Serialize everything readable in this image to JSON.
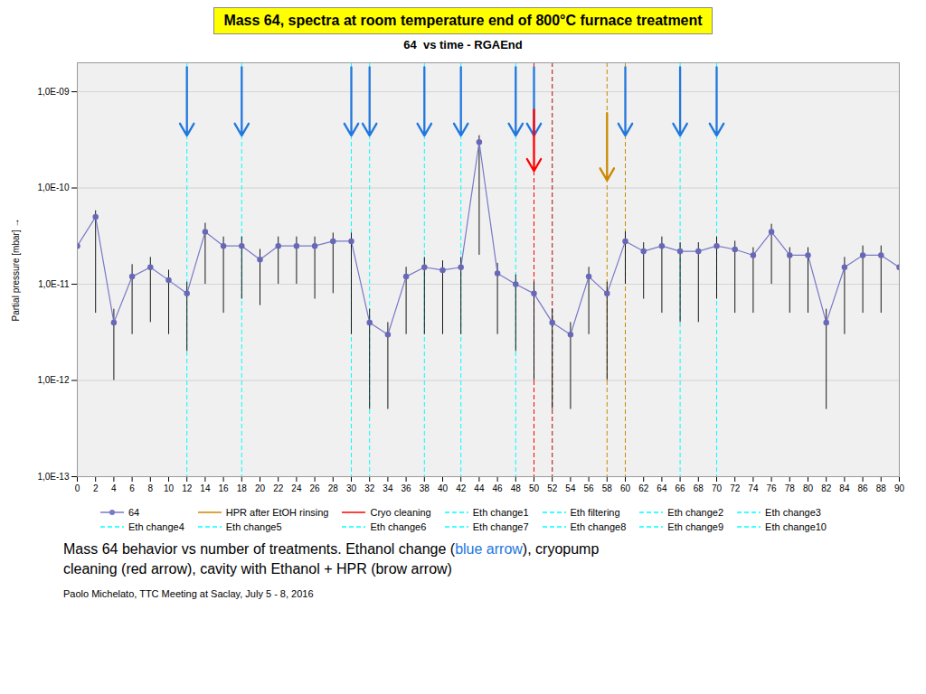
{
  "chart_data": {
    "type": "line",
    "title": "Mass 64, spectra at room temperature end of 800°C furnace treatment",
    "subtitle": "64  vs time - RGAEnd",
    "y_label": "Partial pressure [mbar]",
    "log": "y",
    "grid": "y",
    "grid_color": "#cccccc",
    "background_color": "#f0f0f0",
    "legend": "bottom",
    "x": [
      0,
      2,
      4,
      6,
      8,
      10,
      12,
      14,
      16,
      18,
      20,
      22,
      24,
      26,
      28,
      30,
      32,
      34,
      36,
      38,
      40,
      42,
      44,
      46,
      48,
      50,
      52,
      54,
      56,
      58,
      60,
      62,
      64,
      66,
      68,
      70,
      72,
      74,
      76,
      78,
      80,
      82,
      84,
      86,
      88,
      90
    ],
    "xlim": [
      0,
      90
    ],
    "xticks": [
      0,
      2,
      4,
      6,
      8,
      10,
      12,
      14,
      16,
      18,
      20,
      22,
      24,
      26,
      28,
      30,
      32,
      34,
      36,
      38,
      40,
      42,
      44,
      46,
      48,
      50,
      52,
      54,
      56,
      58,
      60,
      62,
      64,
      66,
      68,
      70,
      72,
      74,
      76,
      78,
      80,
      82,
      84,
      86,
      88,
      90
    ],
    "ylim": [
      1e-13,
      2e-09
    ],
    "yticks": [
      {
        "value": 1e-13,
        "label": "1,0E-13"
      },
      {
        "value": 1e-12,
        "label": "1,0E-12"
      },
      {
        "value": 1e-11,
        "label": "1,0E-11"
      },
      {
        "value": 1e-10,
        "label": "1,0E-10"
      },
      {
        "value": 1e-09,
        "label": "1,0E-09"
      }
    ],
    "series": [
      {
        "name": "64",
        "color": "#7878c8",
        "marker": "circle",
        "line_style": "solid",
        "marker_color": "#6868b8",
        "error_color": "black",
        "values": [
          2.5e-11,
          5e-11,
          4e-12,
          1.2e-11,
          1.5e-11,
          1.1e-11,
          8e-12,
          3.5e-11,
          2.5e-11,
          2.5e-11,
          1.8e-11,
          2.5e-11,
          2.5e-11,
          2.5e-11,
          2.8e-11,
          2.8e-11,
          4e-12,
          3e-12,
          1.2e-11,
          1.5e-11,
          1.4e-11,
          1.5e-11,
          3e-10,
          1.3e-11,
          1e-11,
          8e-12,
          4e-12,
          3e-12,
          1.2e-11,
          8e-12,
          2.8e-11,
          2.2e-11,
          2.5e-11,
          2.2e-11,
          2.2e-11,
          2.5e-11,
          2.3e-11,
          2e-11,
          3.5e-11,
          2e-11,
          2e-11,
          4e-12,
          1.5e-11,
          2e-11,
          2e-11,
          1.5e-11
        ],
        "error_low": [
          1.2e-11,
          4.5e-11,
          3e-12,
          9e-12,
          1.1e-11,
          8e-12,
          6e-12,
          2.5e-11,
          2e-11,
          1.8e-11,
          1.2e-11,
          1.5e-11,
          1.5e-11,
          1.8e-11,
          2e-11,
          2.5e-11,
          3.5e-12,
          2.5e-12,
          9e-12,
          1.2e-11,
          1.1e-11,
          1.2e-11,
          2.8e-10,
          1e-11,
          8e-12,
          7e-12,
          3.5e-12,
          2.5e-12,
          9e-12,
          7e-12,
          1.8e-11,
          1.5e-11,
          2e-11,
          1.8e-11,
          1.8e-11,
          1.8e-11,
          1.8e-11,
          1.5e-11,
          2.5e-11,
          1.5e-11,
          1.5e-11,
          3.5e-12,
          1.2e-11,
          1.5e-11,
          1.5e-11,
          1.2e-11
        ],
        "error_high": [
          8e-12,
          8e-12,
          1.5e-12,
          4e-12,
          4e-12,
          3e-12,
          2.5e-12,
          8e-12,
          6e-12,
          6e-12,
          5e-12,
          6e-12,
          6e-12,
          6e-12,
          6e-12,
          6e-12,
          1.5e-12,
          1e-12,
          3e-12,
          4e-12,
          3.5e-12,
          4e-12,
          5e-11,
          3.5e-12,
          2.5e-12,
          2.5e-12,
          1.5e-12,
          1e-12,
          3e-12,
          2.5e-12,
          7e-12,
          5e-12,
          6e-12,
          5e-12,
          5e-12,
          6e-12,
          5e-12,
          4e-12,
          7e-12,
          4e-12,
          4e-12,
          1.5e-12,
          4e-12,
          5e-12,
          5e-12,
          4e-12
        ]
      }
    ],
    "vlines": [
      {
        "color": "cyan",
        "line_style": "dashed",
        "values": [
          12,
          18,
          30,
          32,
          38,
          42,
          48,
          52,
          60,
          66,
          70
        ]
      },
      {
        "color": "red",
        "line_style": "dashed",
        "values": [
          50,
          52
        ]
      },
      {
        "color": "#cc8800",
        "line_style": "dashed",
        "values": [
          58,
          60
        ]
      }
    ],
    "arrows": [
      {
        "x": 12,
        "y_start": 1.8e-09,
        "y_end": 3.5e-10,
        "color": "#2277dd"
      },
      {
        "x": 18,
        "y_start": 1.8e-09,
        "y_end": 3.5e-10,
        "color": "#2277dd"
      },
      {
        "x": 30,
        "y_start": 1.8e-09,
        "y_end": 3.5e-10,
        "color": "#2277dd"
      },
      {
        "x": 32,
        "y_start": 1.8e-09,
        "y_end": 3.5e-10,
        "color": "#2277dd"
      },
      {
        "x": 38,
        "y_start": 1.8e-09,
        "y_end": 3.5e-10,
        "color": "#2277dd"
      },
      {
        "x": 42,
        "y_start": 1.8e-09,
        "y_end": 3.5e-10,
        "color": "#2277dd"
      },
      {
        "x": 48,
        "y_start": 1.8e-09,
        "y_end": 3.5e-10,
        "color": "#2277dd"
      },
      {
        "x": 50,
        "y_start": 1.8e-09,
        "y_end": 3.5e-10,
        "color": "#2277dd"
      },
      {
        "x": 60,
        "y_start": 1.8e-09,
        "y_end": 3.5e-10,
        "color": "#2277dd"
      },
      {
        "x": 66,
        "y_start": 1.8e-09,
        "y_end": 3.5e-10,
        "color": "#2277dd"
      },
      {
        "x": 70,
        "y_start": 1.8e-09,
        "y_end": 3.5e-10,
        "color": "#2277dd"
      },
      {
        "x": 50,
        "y_start": 6.5e-10,
        "y_end": 1.5e-10,
        "color": "red"
      },
      {
        "x": 58,
        "y_start": 6e-10,
        "y_end": 1.2e-10,
        "color": "#cc8800"
      }
    ],
    "legend_items": [
      {
        "name": "64",
        "color": "#7878c8",
        "marker": "circle",
        "line_style": "solid"
      },
      {
        "name": "HPR after EtOH rinsing",
        "color": "#cc8800",
        "line_style": "solid"
      },
      {
        "name": "Cryo cleaning",
        "color": "red",
        "line_style": "solid"
      },
      {
        "name": "Eth change1",
        "color": "cyan",
        "line_style": "dashed"
      },
      {
        "name": "Eth filtering",
        "color": "cyan",
        "line_style": "dashed"
      },
      {
        "name": "Eth change2",
        "color": "cyan",
        "line_style": "dashed"
      },
      {
        "name": "Eth change3",
        "color": "cyan",
        "line_style": "dashed"
      },
      {
        "name": "Eth change4",
        "color": "cyan",
        "line_style": "dashed"
      },
      {
        "name": "Eth change5",
        "color": "cyan",
        "line_style": "dashed"
      },
      {
        "name": "Eth change6",
        "color": "cyan",
        "line_style": "dashed"
      },
      {
        "name": "Eth change7",
        "color": "cyan",
        "line_style": "dashed"
      },
      {
        "name": "Eth change8",
        "color": "cyan",
        "line_style": "dashed"
      },
      {
        "name": "Eth change9",
        "color": "cyan",
        "line_style": "dashed"
      },
      {
        "name": "Eth change10",
        "color": "cyan",
        "line_style": "dashed"
      }
    ],
    "caption_lines": [
      [
        {
          "text": "Mass 64 behavior vs number of treatments. Ethanol change (",
          "color": "black"
        },
        {
          "text": "blue arrow",
          "color": "#2277dd"
        },
        {
          "text": "), cryopump",
          "color": "black"
        }
      ],
      [
        {
          "text": "cleaning (red arrow), cavity with Ethanol + HPR (brow arrow)",
          "color": "black"
        }
      ]
    ],
    "credit": "Paolo Michelato, TTC Meeting at Saclay, July 5 - 8, 2016"
  }
}
